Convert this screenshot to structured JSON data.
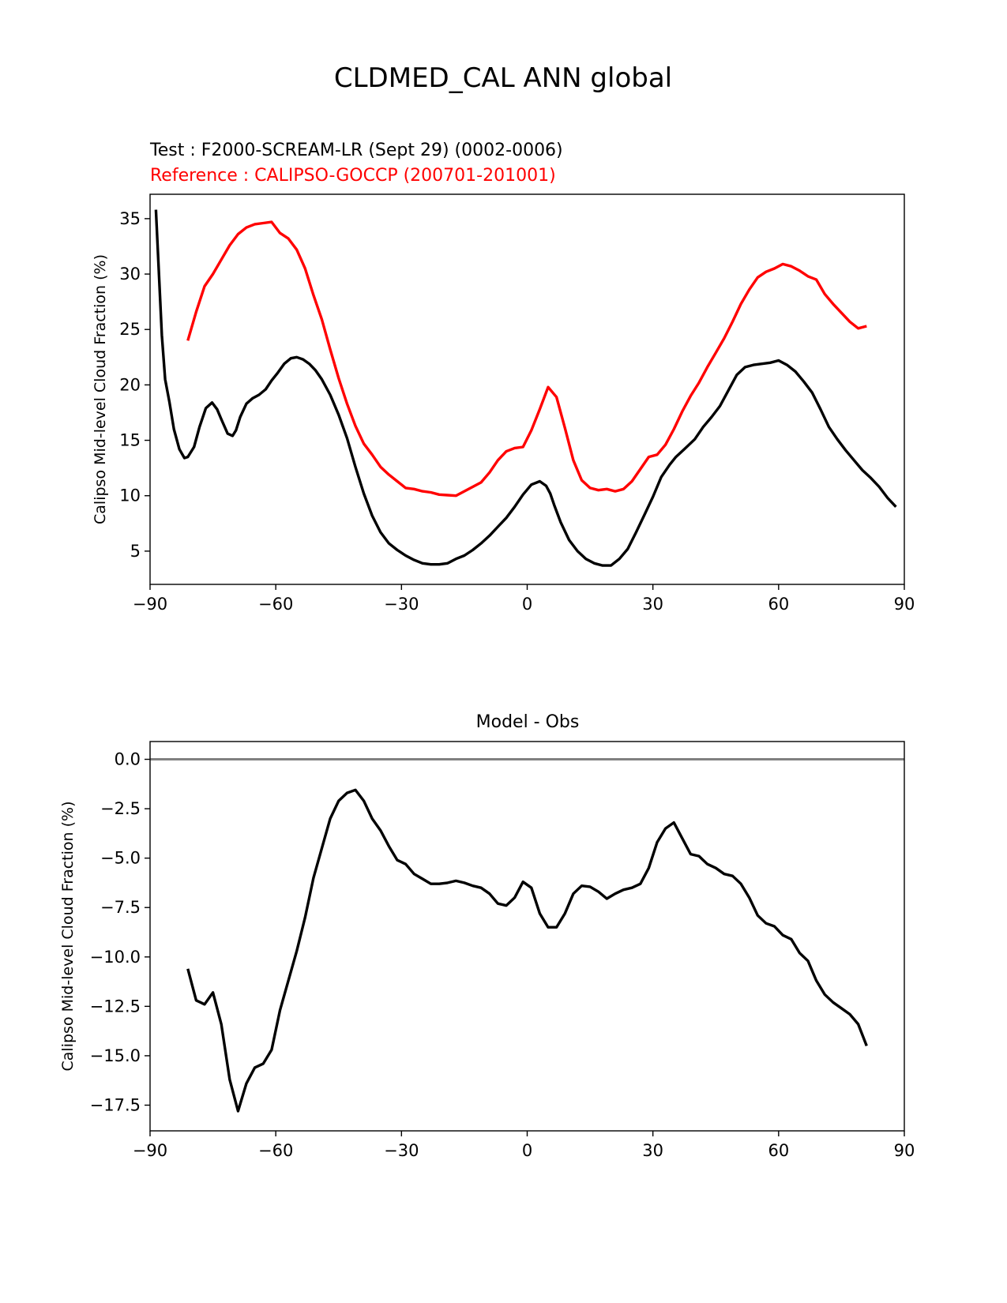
{
  "figure_title": "CLDMED_CAL ANN global",
  "chart_data": [
    {
      "type": "line",
      "test_label": "Test : F2000-SCREAM-LR (Sept 29) (0002-0006)",
      "reference_label": "Reference : CALIPSO-GOCCP (200701-201001)",
      "ylabel": "Calipso Mid-level Cloud Fraction (%)",
      "xlabel": "",
      "xlim": [
        -90,
        90
      ],
      "ylim": [
        2,
        37.2
      ],
      "xticks": [
        -90,
        -60,
        -30,
        0,
        30,
        60,
        90
      ],
      "xtick_labels": [
        "−90",
        "−60",
        "−30",
        "0",
        "30",
        "60",
        "90"
      ],
      "yticks": [
        5,
        10,
        15,
        20,
        25,
        30,
        35
      ],
      "ytick_labels": [
        "5",
        "10",
        "15",
        "20",
        "25",
        "30",
        "35"
      ],
      "series": [
        {
          "name": "Test",
          "color": "#000000",
          "x": [
            -88.6,
            -87.2,
            -86.4,
            -85.4,
            -84.3,
            -83.0,
            -81.8,
            -81.0,
            -79.5,
            -78.2,
            -76.7,
            -75.2,
            -74.0,
            -73.0,
            -71.5,
            -70.3,
            -69.5,
            -68.5,
            -67.0,
            -65.5,
            -64.0,
            -62.4,
            -61.0,
            -59.5,
            -58.0,
            -56.4,
            -55.0,
            -53.5,
            -52.0,
            -50.5,
            -49.0,
            -47.0,
            -45.0,
            -43.0,
            -41.0,
            -39.0,
            -37.0,
            -35.0,
            -33.0,
            -31.0,
            -29.0,
            -27.0,
            -25.0,
            -23.0,
            -21.0,
            -19.0,
            -17.0,
            -15.0,
            -13.0,
            -11.0,
            -9.0,
            -7.0,
            -5.0,
            -3.0,
            -1.0,
            1.0,
            3.0,
            4.5,
            5.5,
            6.5,
            8.0,
            10.0,
            12.0,
            14.0,
            16.0,
            18.0,
            20.0,
            22.0,
            24.0,
            26.0,
            28.0,
            30.0,
            32.0,
            34.0,
            35.5,
            37.5,
            40.0,
            42.0,
            44.0,
            46.0,
            48.0,
            50.0,
            52.0,
            54.0,
            56.0,
            58.0,
            60.0,
            62.0,
            64.0,
            66.0,
            68.0,
            70.0,
            72.0,
            74.0,
            76.0,
            78.0,
            80.0,
            82.0,
            84.0,
            86.0,
            88.0
          ],
          "y": [
            35.8,
            24.5,
            20.5,
            18.5,
            16.0,
            14.2,
            13.4,
            13.5,
            14.4,
            16.2,
            17.9,
            18.4,
            17.8,
            16.9,
            15.6,
            15.4,
            15.9,
            17.1,
            18.3,
            18.8,
            19.1,
            19.6,
            20.4,
            21.1,
            21.9,
            22.4,
            22.5,
            22.3,
            21.9,
            21.3,
            20.5,
            19.1,
            17.3,
            15.2,
            12.6,
            10.2,
            8.2,
            6.7,
            5.7,
            5.1,
            4.6,
            4.2,
            3.9,
            3.8,
            3.8,
            3.9,
            4.3,
            4.6,
            5.1,
            5.7,
            6.4,
            7.2,
            8.0,
            9.0,
            10.1,
            11.0,
            11.3,
            10.9,
            10.2,
            9.1,
            7.6,
            6.0,
            5.0,
            4.3,
            3.9,
            3.7,
            3.7,
            4.3,
            5.2,
            6.7,
            8.3,
            9.9,
            11.7,
            12.8,
            13.5,
            14.2,
            15.1,
            16.2,
            17.1,
            18.1,
            19.5,
            20.9,
            21.6,
            21.8,
            21.9,
            22.0,
            22.2,
            21.8,
            21.2,
            20.3,
            19.3,
            17.8,
            16.2,
            15.1,
            14.1,
            13.2,
            12.3,
            11.6,
            10.8,
            9.8,
            9.0
          ]
        },
        {
          "name": "Reference",
          "color": "#ff0000",
          "x": [
            -81.0,
            -79.0,
            -77.0,
            -75.0,
            -73.0,
            -71.0,
            -69.0,
            -67.0,
            -65.0,
            -63.0,
            -61.0,
            -59.0,
            -57.0,
            -55.0,
            -53.0,
            -51.0,
            -49.0,
            -47.0,
            -45.0,
            -43.0,
            -41.0,
            -39.0,
            -37.0,
            -35.0,
            -33.0,
            -31.0,
            -29.0,
            -27.0,
            -25.0,
            -23.0,
            -21.0,
            -19.0,
            -17.0,
            -15.0,
            -13.0,
            -11.0,
            -9.0,
            -7.0,
            -5.0,
            -3.0,
            -1.0,
            1.0,
            3.0,
            5.0,
            7.0,
            9.0,
            11.0,
            13.0,
            15.0,
            17.0,
            19.0,
            21.0,
            23.0,
            25.0,
            27.0,
            29.0,
            31.0,
            33.0,
            35.0,
            37.0,
            39.0,
            41.0,
            43.0,
            45.0,
            47.0,
            49.0,
            51.0,
            53.0,
            55.0,
            57.0,
            59.0,
            61.0,
            63.0,
            65.0,
            67.0,
            69.0,
            71.0,
            73.0,
            75.0,
            77.0,
            79.0,
            81.0
          ],
          "y": [
            24.0,
            26.6,
            28.9,
            30.0,
            31.3,
            32.6,
            33.6,
            34.2,
            34.5,
            34.6,
            34.7,
            33.7,
            33.2,
            32.2,
            30.5,
            28.1,
            25.9,
            23.2,
            20.6,
            18.3,
            16.3,
            14.7,
            13.7,
            12.6,
            11.9,
            11.3,
            10.7,
            10.6,
            10.4,
            10.3,
            10.1,
            10.05,
            10.0,
            10.4,
            10.8,
            11.2,
            12.1,
            13.2,
            14.0,
            14.3,
            14.4,
            15.9,
            17.8,
            19.8,
            18.9,
            16.1,
            13.2,
            11.4,
            10.7,
            10.5,
            10.6,
            10.4,
            10.6,
            11.3,
            12.4,
            13.5,
            13.7,
            14.6,
            16.0,
            17.6,
            19.0,
            20.2,
            21.6,
            22.9,
            24.2,
            25.7,
            27.3,
            28.6,
            29.7,
            30.2,
            30.5,
            30.9,
            30.7,
            30.3,
            29.8,
            29.5,
            28.2,
            27.3,
            26.5,
            25.7,
            25.1,
            25.3
          ]
        }
      ]
    },
    {
      "type": "line",
      "title": "Model - Obs",
      "ylabel": "Calipso Mid-level Cloud Fraction (%)",
      "xlabel": "",
      "xlim": [
        -90,
        90
      ],
      "ylim": [
        -18.8,
        0.9
      ],
      "xticks": [
        -90,
        -60,
        -30,
        0,
        30,
        60,
        90
      ],
      "xtick_labels": [
        "−90",
        "−60",
        "−30",
        "0",
        "30",
        "60",
        "90"
      ],
      "yticks": [
        0.0,
        -2.5,
        -5.0,
        -7.5,
        -10.0,
        -12.5,
        -15.0,
        -17.5
      ],
      "ytick_labels": [
        "0.0",
        "−2.5",
        "−5.0",
        "−7.5",
        "−10.0",
        "−12.5",
        "−15.0",
        "−17.5"
      ],
      "zero_line": {
        "y": 0,
        "color": "#808080"
      },
      "series": [
        {
          "name": "Model - Obs",
          "color": "#000000",
          "x": [
            -81.0,
            -79.0,
            -77.0,
            -75.0,
            -73.0,
            -71.0,
            -69.0,
            -67.0,
            -65.0,
            -63.0,
            -61.0,
            -59.0,
            -57.0,
            -55.0,
            -53.0,
            -51.0,
            -49.0,
            -47.0,
            -45.0,
            -43.0,
            -41.0,
            -39.0,
            -37.0,
            -35.0,
            -33.0,
            -31.0,
            -29.0,
            -27.0,
            -25.0,
            -23.0,
            -21.0,
            -19.0,
            -17.0,
            -15.0,
            -13.0,
            -11.0,
            -9.0,
            -7.0,
            -5.0,
            -3.0,
            -1.0,
            1.0,
            3.0,
            5.0,
            7.0,
            9.0,
            11.0,
            13.0,
            15.0,
            17.0,
            19.0,
            21.0,
            23.0,
            25.0,
            27.0,
            29.0,
            31.0,
            33.0,
            35.0,
            37.0,
            39.0,
            41.0,
            43.0,
            45.0,
            47.0,
            49.0,
            51.0,
            53.0,
            55.0,
            57.0,
            59.0,
            61.0,
            63.0,
            65.0,
            67.0,
            69.0,
            71.0,
            73.0,
            75.0,
            77.0,
            79.0,
            81.0
          ],
          "y": [
            -10.6,
            -12.2,
            -12.4,
            -11.8,
            -13.4,
            -16.2,
            -17.8,
            -16.4,
            -15.6,
            -15.4,
            -14.7,
            -12.7,
            -11.2,
            -9.7,
            -8.0,
            -6.0,
            -4.5,
            -3.0,
            -2.1,
            -1.7,
            -1.55,
            -2.1,
            -3.0,
            -3.6,
            -4.4,
            -5.1,
            -5.3,
            -5.8,
            -6.05,
            -6.3,
            -6.3,
            -6.25,
            -6.15,
            -6.25,
            -6.4,
            -6.5,
            -6.8,
            -7.3,
            -7.4,
            -7.0,
            -6.2,
            -6.5,
            -7.8,
            -8.5,
            -8.5,
            -7.8,
            -6.8,
            -6.4,
            -6.45,
            -6.7,
            -7.05,
            -6.8,
            -6.6,
            -6.5,
            -6.3,
            -5.5,
            -4.2,
            -3.5,
            -3.2,
            -4.0,
            -4.8,
            -4.9,
            -5.3,
            -5.5,
            -5.8,
            -5.9,
            -6.3,
            -7.0,
            -7.9,
            -8.3,
            -8.45,
            -8.9,
            -9.1,
            -9.8,
            -10.2,
            -11.2,
            -11.9,
            -12.3,
            -12.6,
            -12.9,
            -13.4,
            -14.5
          ]
        }
      ]
    }
  ]
}
